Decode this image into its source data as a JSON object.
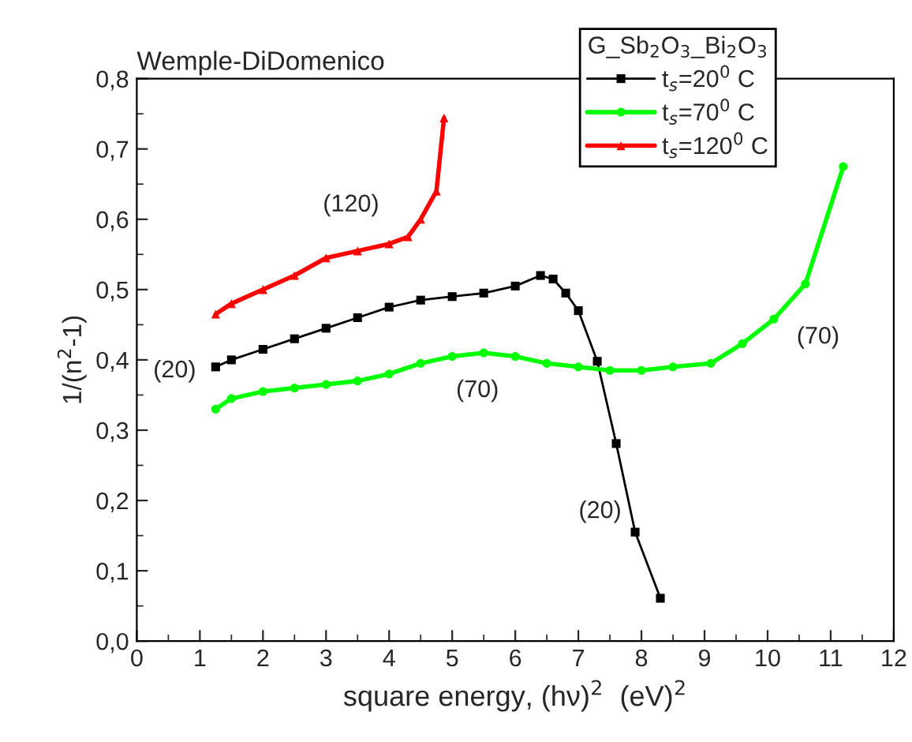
{
  "chart_data": {
    "type": "line",
    "title": "Wemple-DiDomenico",
    "xlabel": "square energy, (hν)$^{2}$  (eV)$^{2}$",
    "ylabel": "1/(n$^{2}$-1)",
    "legend_title": "G_Sb$_{2}$O$_{3}$_Bi$_{2}$O$_{3}$",
    "legend": "top right",
    "grid": false,
    "xlim": [
      0,
      12
    ],
    "xticks": [
      0,
      1,
      2,
      3,
      4,
      5,
      6,
      7,
      8,
      9,
      10,
      11,
      12
    ],
    "ylim": [
      0,
      0.8
    ],
    "yticks": [
      {
        "value": 0,
        "label": "0,0"
      },
      {
        "value": 0.1,
        "label": "0,1"
      },
      {
        "value": 0.2,
        "label": "0,2"
      },
      {
        "value": 0.3,
        "label": "0,3"
      },
      {
        "value": 0.4,
        "label": "0,4"
      },
      {
        "value": 0.5,
        "label": "0,5"
      },
      {
        "value": 0.6,
        "label": "0,6"
      },
      {
        "value": 0.7,
        "label": "0,7"
      },
      {
        "value": 0.8,
        "label": "0,8"
      }
    ],
    "series": [
      {
        "name": "t$_{s}$=20$^{0}$ C",
        "color": "#000000",
        "marker": "square",
        "x": [
          1.25,
          1.5,
          2,
          2.5,
          3,
          3.5,
          4,
          4.5,
          5,
          5.5,
          6,
          6.4,
          6.6,
          6.8,
          7.0,
          7.3,
          7.6,
          7.9,
          8.3
        ],
        "values": [
          0.39,
          0.4,
          0.415,
          0.43,
          0.445,
          0.46,
          0.475,
          0.485,
          0.49,
          0.495,
          0.505,
          0.52,
          0.515,
          0.495,
          0.47,
          0.398,
          0.281,
          0.155,
          0.061
        ]
      },
      {
        "name": "t$_{s}$=70$^{0}$ C",
        "color": "#00ff00",
        "marker": "circle",
        "x": [
          1.25,
          1.5,
          2,
          2.5,
          3,
          3.5,
          4,
          4.5,
          5,
          5.5,
          6,
          6.5,
          7,
          7.5,
          8,
          8.5,
          9.1,
          9.6,
          10.1,
          10.6,
          11.2
        ],
        "values": [
          0.33,
          0.345,
          0.355,
          0.36,
          0.365,
          0.37,
          0.38,
          0.395,
          0.405,
          0.41,
          0.405,
          0.395,
          0.39,
          0.385,
          0.385,
          0.39,
          0.395,
          0.423,
          0.458,
          0.508,
          0.675
        ]
      },
      {
        "name": "t$_{s}$=120$^{0}$ C",
        "color": "#ff0000",
        "marker": "triangle",
        "x": [
          1.25,
          1.5,
          2,
          2.5,
          3,
          3.5,
          4,
          4.3,
          4.5,
          4.75,
          4.87
        ],
        "values": [
          0.465,
          0.48,
          0.5,
          0.52,
          0.545,
          0.555,
          0.565,
          0.575,
          0.6,
          0.64,
          0.744
        ]
      }
    ],
    "annotations": [
      "(120)",
      "(20)",
      "(70)",
      "(20)",
      "(70)"
    ]
  }
}
